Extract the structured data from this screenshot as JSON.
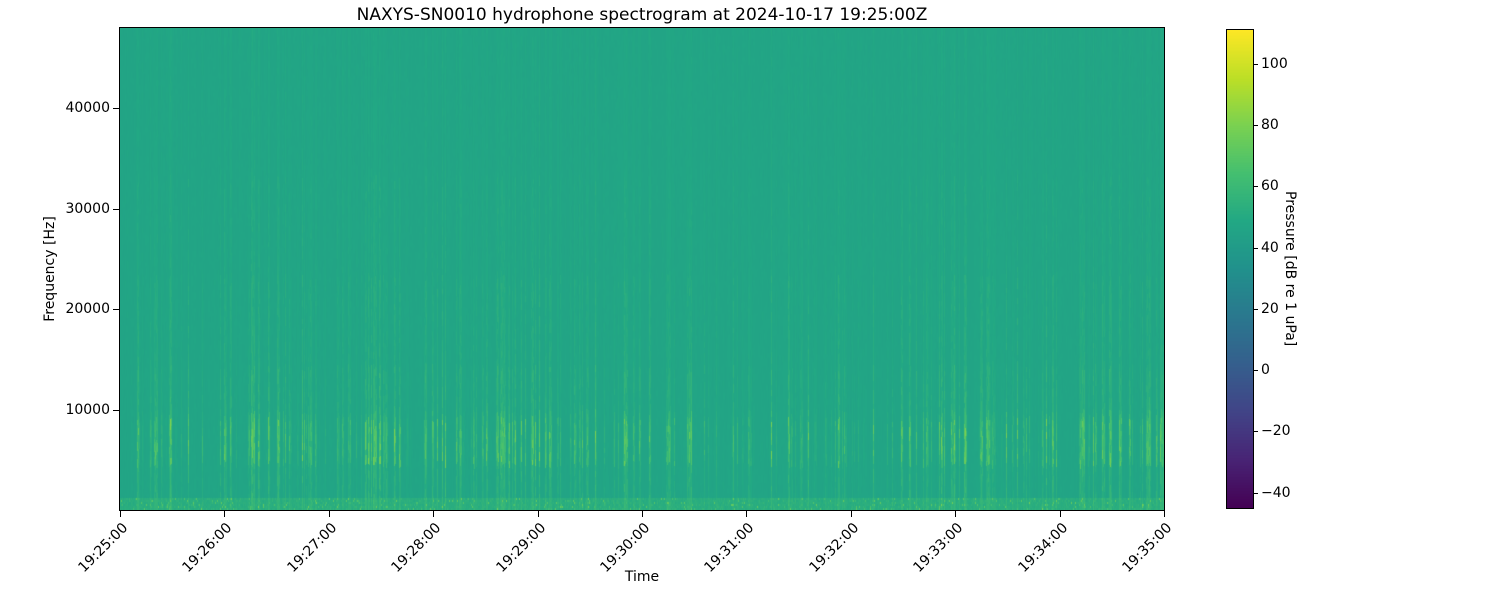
{
  "chart_data": {
    "type": "heatmap",
    "subtype": "spectrogram",
    "title": "NAXYS-SN0010 hydrophone spectrogram at 2024-10-17 19:25:00Z",
    "xlabel": "Time",
    "ylabel": "Frequency [Hz]",
    "x_tick_labels": [
      "19:25:00",
      "19:26:00",
      "19:27:00",
      "19:28:00",
      "19:29:00",
      "19:30:00",
      "19:31:00",
      "19:32:00",
      "19:33:00",
      "19:34:00",
      "19:35:00"
    ],
    "x_range": {
      "start": "19:25:00",
      "end": "19:35:00",
      "span_seconds": 600
    },
    "y_tick_values": [
      10000,
      20000,
      30000,
      40000
    ],
    "y_tick_labels": [
      "10000",
      "20000",
      "30000",
      "40000"
    ],
    "freq_range_hz": [
      0,
      48000
    ],
    "grid": false,
    "legend": "none",
    "colormap": {
      "name": "viridis",
      "stops": [
        [
          0.0,
          "#440154"
        ],
        [
          0.1,
          "#482475"
        ],
        [
          0.2,
          "#414487"
        ],
        [
          0.3,
          "#355f8d"
        ],
        [
          0.4,
          "#2a788e"
        ],
        [
          0.5,
          "#21918c"
        ],
        [
          0.6,
          "#22a884"
        ],
        [
          0.7,
          "#44bf70"
        ],
        [
          0.8,
          "#7ad151"
        ],
        [
          0.9,
          "#bddf26"
        ],
        [
          1.0,
          "#fde725"
        ]
      ]
    },
    "colorbar": {
      "label": "Pressure [dB re 1 uPa]",
      "tick_values": [
        100,
        80,
        60,
        40,
        20,
        0,
        -20,
        -40
      ],
      "tick_labels": [
        "100",
        "80",
        "60",
        "40",
        "20",
        "0",
        "−20",
        "−40"
      ],
      "vmin": -45,
      "vmax": 111,
      "position": "right"
    },
    "background_level_db": 46.5,
    "features": {
      "transient_events": {
        "count_estimate": 250,
        "description": "irregular broadband vertical streaks (impulsive clicks) spanning all frequencies, fading above ~20 kHz",
        "peak_band_hz": [
          4500,
          9000
        ],
        "peak_level_db": 72
      },
      "low_freq_band": {
        "freq_hz": [
          0,
          1200
        ],
        "level_db": [
          51,
          62
        ],
        "description": "continuous brighter speckled band along the bottom edge"
      }
    }
  }
}
